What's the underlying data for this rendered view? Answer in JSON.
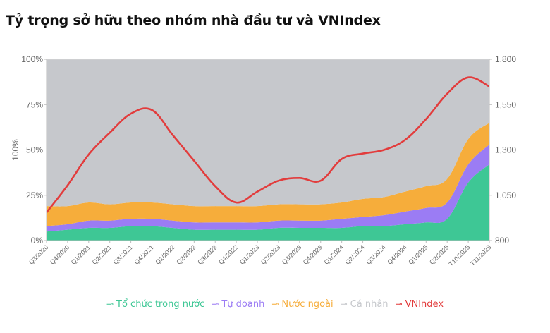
{
  "chart_data": {
    "type": "area",
    "title": "Tỷ trọng sở hữu theo nhóm nhà đầu tư và VNIndex",
    "ylabel": "100%",
    "ylim_left": [
      0,
      100
    ],
    "ylim_right": [
      800,
      1800
    ],
    "left_ticks": [
      "0%",
      "25%",
      "50%",
      "75%",
      "100%"
    ],
    "right_ticks": [
      "800",
      "1,050",
      "1,300",
      "1,550",
      "1,800"
    ],
    "grid": true,
    "legend": "bottom",
    "categories": [
      "Q3/2020",
      "Q4/2020",
      "Q1/2021",
      "Q2/2021",
      "Q3/2021",
      "Q4/2021",
      "Q1/2022",
      "Q2/2022",
      "Q3/2022",
      "Q4/2022",
      "Q1/2023",
      "Q2/2023",
      "Q3/2023",
      "Q4/2023",
      "Q1/2024",
      "Q2/2024",
      "Q3/2024",
      "Q4/2024",
      "Q1/2025",
      "Q2/2025",
      "T10/2025",
      "T11/2025"
    ],
    "series": [
      {
        "name": "Tổ chức trong nước",
        "color": "#3ec795",
        "values": [
          5,
          6,
          7,
          7,
          8,
          8,
          7,
          6,
          6,
          6,
          6,
          7,
          7,
          7,
          7,
          8,
          8,
          9,
          10,
          12,
          32,
          42
        ]
      },
      {
        "name": "Tự doanh",
        "color": "#9b7cf4",
        "values": [
          3,
          3,
          4,
          4,
          4,
          4,
          4,
          4,
          4,
          4,
          4,
          4,
          4,
          4,
          5,
          5,
          6,
          7,
          8,
          9,
          10,
          11
        ]
      },
      {
        "name": "Nước ngoài",
        "color": "#f6ad3b",
        "values": [
          11,
          10,
          10,
          9,
          9,
          9,
          9,
          9,
          9,
          9,
          9,
          9,
          9,
          9,
          9,
          10,
          10,
          11,
          12,
          13,
          14,
          12
        ]
      },
      {
        "name": "Cá nhân",
        "color": "#c6c8cc",
        "values": [
          81,
          81,
          79,
          80,
          79,
          79,
          80,
          81,
          81,
          81,
          81,
          80,
          80,
          80,
          79,
          77,
          76,
          73,
          70,
          66,
          44,
          35
        ]
      },
      {
        "name": "VNIndex",
        "color": "#e23c3c",
        "axis": "right",
        "values": [
          955,
          1105,
          1275,
          1395,
          1500,
          1520,
          1380,
          1240,
          1100,
          1010,
          1070,
          1130,
          1145,
          1130,
          1250,
          1280,
          1300,
          1355,
          1470,
          1610,
          1700,
          1650
        ]
      }
    ]
  }
}
